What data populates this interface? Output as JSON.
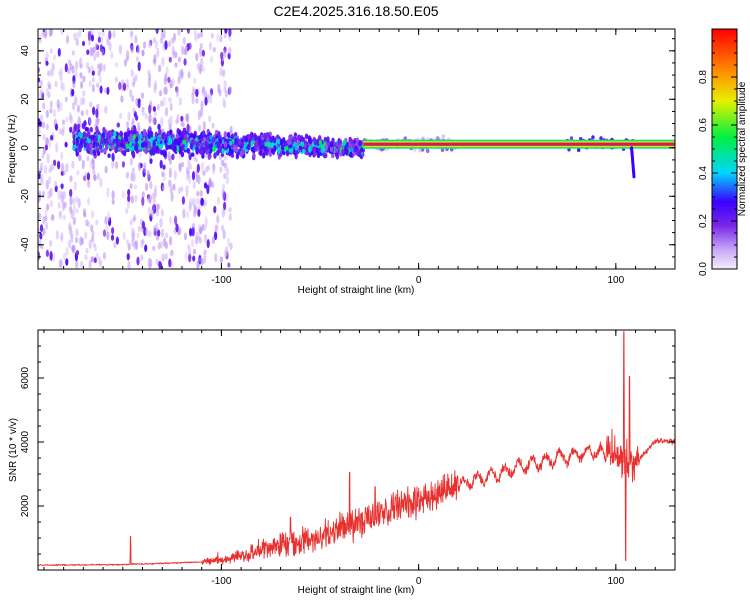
{
  "title": "C2E4.2025.316.18.50.E05",
  "colors": {
    "axis": "#000000",
    "snr_line": "#e8302f",
    "signal_ridge": "#c81e5a",
    "ridge_halo": "#39d27a"
  },
  "chart_data": [
    {
      "type": "heatmap",
      "title": "C2E4.2025.316.18.50.E05",
      "xlabel": "Height of straight line (km)",
      "ylabel": "Frequency (Hz)",
      "xlim": [
        -193,
        130
      ],
      "ylim": [
        -50,
        49
      ],
      "xticks": [
        -100,
        0,
        100
      ],
      "xtick_labels": [
        "-100",
        "0",
        "100"
      ],
      "yticks": [
        -40,
        -20,
        0,
        20,
        40
      ],
      "ytick_labels": [
        "-40",
        "-20",
        "0",
        "20",
        "40"
      ],
      "signal_ridge": {
        "x_start": -28,
        "x_end": 130,
        "frequency_hz": 1.5
      },
      "broadband_region": {
        "x_start": -193,
        "x_end": -95,
        "frequency_spread_hz": 49
      },
      "core_band": {
        "x_start": -175,
        "x_end": -30,
        "frequency_center_hz": 3,
        "half_width_hz": 8
      },
      "tail_spur": {
        "x": 108,
        "frequency_range_hz": [
          -12,
          0
        ]
      },
      "colorbar": {
        "label": "Normalized spectral amplitude",
        "range": [
          0.0,
          1.0
        ],
        "ticks": [
          0.0,
          0.2,
          0.4,
          0.6,
          0.8
        ],
        "tick_labels": [
          "0.0",
          "0.2",
          "0.4",
          "0.6",
          "0.8"
        ],
        "stops": [
          {
            "v": 0.0,
            "color": "#f4eefe"
          },
          {
            "v": 0.08,
            "color": "#c9a8f7"
          },
          {
            "v": 0.18,
            "color": "#7a28e8"
          },
          {
            "v": 0.28,
            "color": "#3a00ff"
          },
          {
            "v": 0.4,
            "color": "#00d6ff"
          },
          {
            "v": 0.55,
            "color": "#00f040"
          },
          {
            "v": 0.7,
            "color": "#e6f000"
          },
          {
            "v": 0.82,
            "color": "#ff9000"
          },
          {
            "v": 1.0,
            "color": "#ff0000"
          }
        ]
      }
    },
    {
      "type": "line",
      "xlabel": "Height of straight line (km)",
      "ylabel": "SNR (10 * v/v)",
      "xlim": [
        -193,
        130
      ],
      "ylim": [
        0,
        7500
      ],
      "xticks": [
        -100,
        0,
        100
      ],
      "xtick_labels": [
        "-100",
        "0",
        "100"
      ],
      "yticks": [
        2000,
        4000,
        6000
      ],
      "ytick_labels": [
        "2000",
        "4000",
        "6000"
      ],
      "series": [
        {
          "name": "SNR",
          "color": "#e8302f",
          "trend": {
            "x": [
              -193,
              -150,
              -110,
              -90,
              -70,
              -50,
              -30,
              -10,
              10,
              30,
              50,
              70,
              90,
              100,
              110,
              120,
              130
            ],
            "y": [
              150,
              170,
              250,
              450,
              800,
              1000,
              1500,
              2000,
              2400,
              2850,
              3200,
              3500,
              3700,
              3500,
              3300,
              4050,
              4000
            ]
          },
          "spikes": [
            {
              "x": -146,
              "y": 1050
            },
            {
              "x": -65,
              "y": 1650
            },
            {
              "x": -35,
              "y": 3050
            },
            {
              "x": -22,
              "y": 2600
            },
            {
              "x": 104,
              "y": 7450
            },
            {
              "x": 107,
              "y": 6050
            },
            {
              "x": 105,
              "y": 300
            }
          ]
        }
      ]
    }
  ]
}
